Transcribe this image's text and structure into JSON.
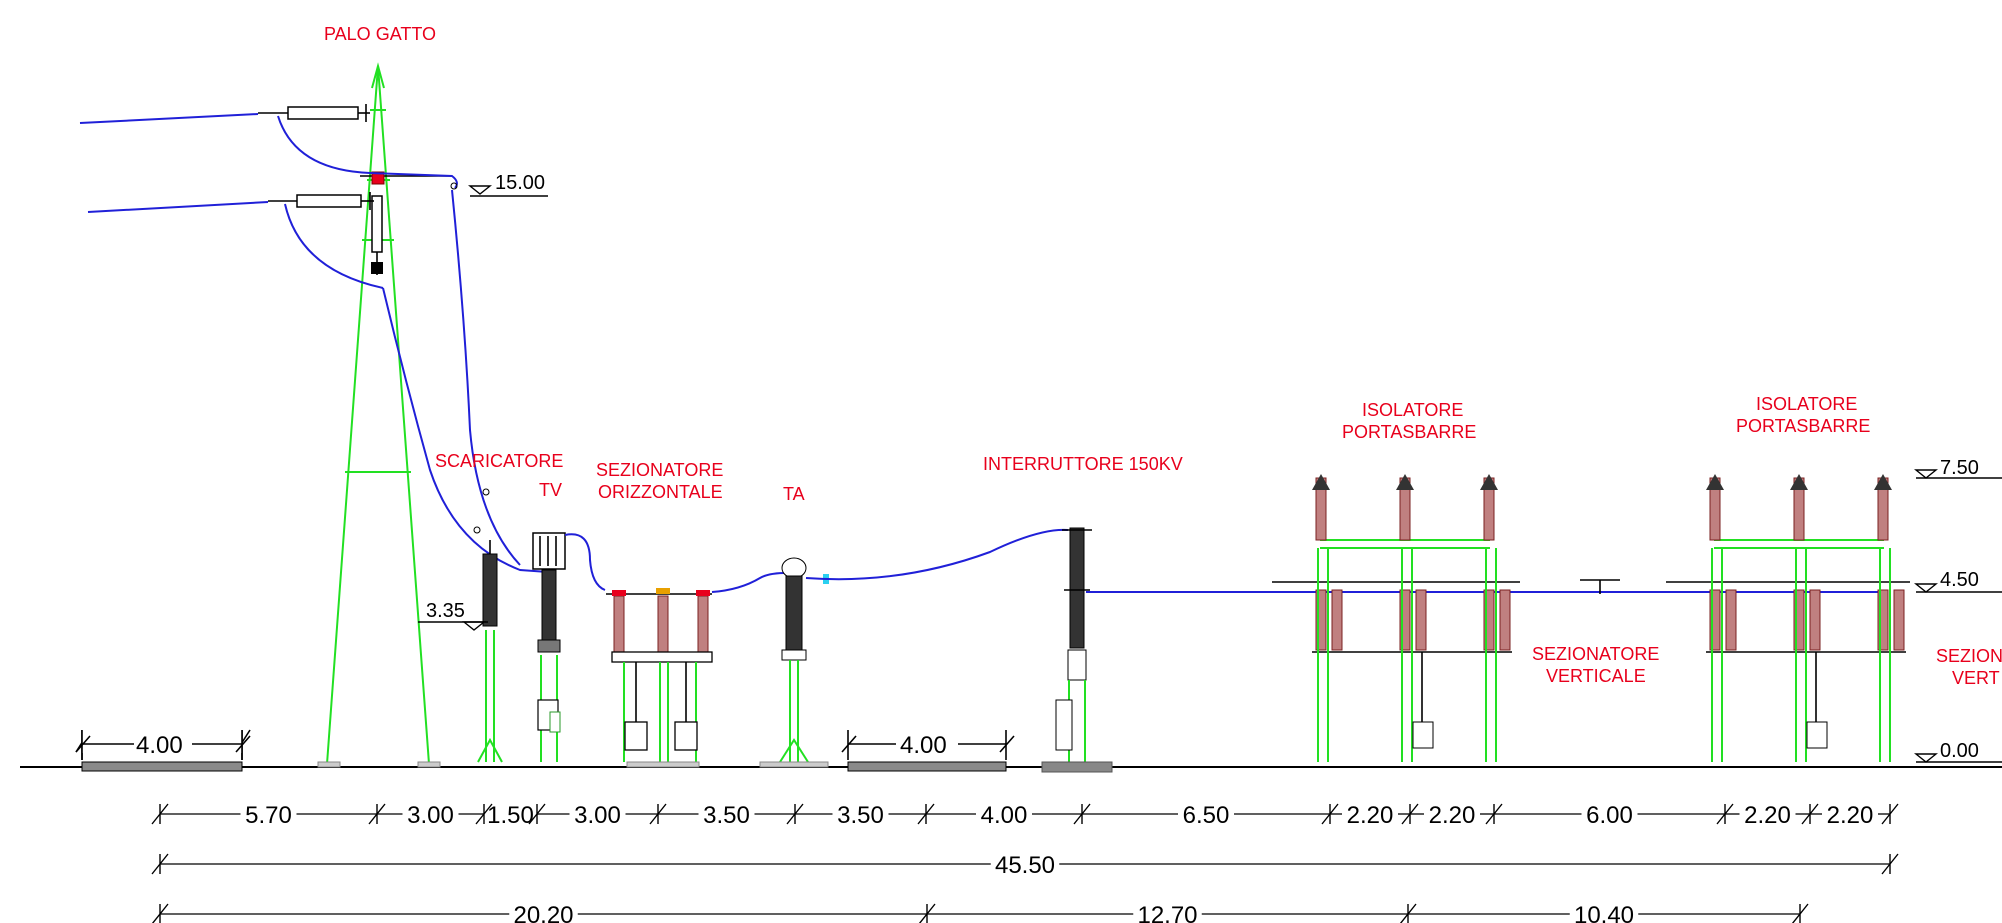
{
  "labels": {
    "palo_gatto": "PALO GATTO",
    "scaricatore": "SCARICATORE",
    "tv": "TV",
    "sez_oriz_1": "SEZIONATORE",
    "sez_oriz_2": "ORIZZONTALE",
    "ta": "TA",
    "interruttore": "INTERRUTTORE 150KV",
    "isolatore1_1": "ISOLATORE",
    "isolatore1_2": "PORTASBARRE",
    "isolatore2_1": "ISOLATORE",
    "isolatore2_2": "PORTASBARRE",
    "sez_vert_1": "SEZIONATORE",
    "sez_vert_2": "VERTICALE",
    "sez_vert_cut_1": "SEZION",
    "sez_vert_cut_2": "VERT"
  },
  "levels": {
    "l15": "15.00",
    "l750": "7.50",
    "l450": "4.50",
    "l335": "3.35",
    "l000": "0.00"
  },
  "dimensions": {
    "foundation_left": "4.00",
    "foundation_mid": "4.00",
    "row1": [
      "5.70",
      "3.00",
      "1.50",
      "3.00",
      "3.50",
      "3.50",
      "4.00",
      "6.50",
      "2.20",
      "2.20",
      "6.00",
      "2.20",
      "2.20"
    ],
    "total": "45.50",
    "row3": [
      "20.20",
      "12.70",
      "10.40"
    ]
  },
  "colors": {
    "labels": "#e8001c",
    "structures": "#22e022",
    "conductors": "#2020d8",
    "insulators": "#c08080"
  }
}
